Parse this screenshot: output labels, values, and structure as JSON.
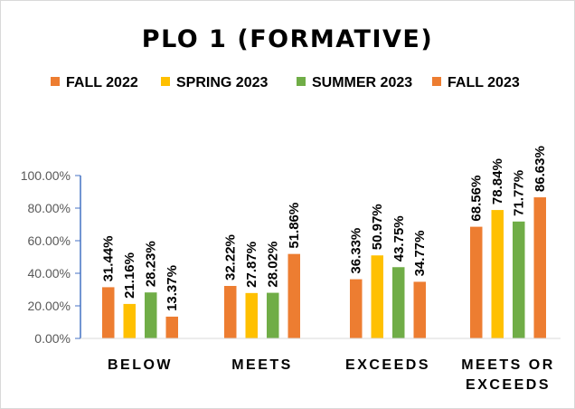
{
  "chart_data": {
    "type": "bar",
    "title": "PLO 1 (FORMATIVE)",
    "categories": [
      [
        "BELOW"
      ],
      [
        "MEETS"
      ],
      [
        "EXCEEDS"
      ],
      [
        "MEETS OR",
        "EXCEEDS"
      ]
    ],
    "series": [
      {
        "name": "FALL 2022",
        "color": "#ED7D31",
        "values": [
          31.44,
          32.22,
          36.33,
          68.56
        ],
        "labels": [
          "31.44%",
          "32.22%",
          "36.33%",
          "68.56%"
        ]
      },
      {
        "name": "SPRING 2023",
        "color": "#FFC000",
        "values": [
          21.16,
          27.87,
          50.97,
          78.84
        ],
        "labels": [
          "21.16%",
          "27.87%",
          "50.97%",
          "78.84%"
        ]
      },
      {
        "name": "SUMMER 2023",
        "color": "#70AD47",
        "values": [
          28.23,
          28.02,
          43.75,
          71.77
        ],
        "labels": [
          "28.23%",
          "28.02%",
          "43.75%",
          "71.77%"
        ]
      },
      {
        "name": "FALL 2023",
        "color": "#ED7D31",
        "values": [
          13.37,
          51.86,
          34.77,
          86.63
        ],
        "labels": [
          "13.37%",
          "51.86%",
          "34.77%",
          "86.63%"
        ]
      }
    ],
    "ylim": [
      0,
      100
    ],
    "yticks": [
      "0.00%",
      "20.00%",
      "40.00%",
      "60.00%",
      "80.00%",
      "100.00%"
    ],
    "legend_position": "top",
    "grid": false,
    "axis_color": "#4472C4"
  }
}
